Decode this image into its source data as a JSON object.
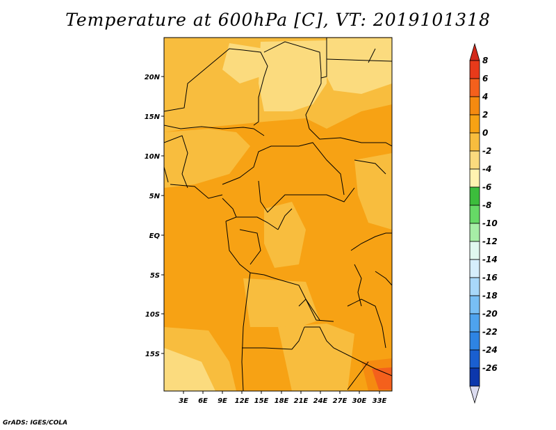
{
  "title": "Temperature at 600hPa [C], VT: 2019101318",
  "credit": "GrADS: IGES/COLA",
  "map": {
    "lat_labels": [
      "20N",
      "15N",
      "10N",
      "5N",
      "EQ",
      "5S",
      "10S",
      "15S"
    ],
    "lon_labels": [
      "3E",
      "6E",
      "9E",
      "12E",
      "15E",
      "18E",
      "21E",
      "24E",
      "27E",
      "30E",
      "33E"
    ]
  },
  "colorbar": {
    "labels": [
      "8",
      "6",
      "4",
      "2",
      "0",
      "-2",
      "-4",
      "-6",
      "-8",
      "-10",
      "-12",
      "-14",
      "-16",
      "-18",
      "-20",
      "-22",
      "-24",
      "-26"
    ],
    "colors": [
      "#e83a1a",
      "#f4601c",
      "#f58a10",
      "#f7a214",
      "#f8bd3e",
      "#fbdb7e",
      "#fff3b0",
      "#3cbd3c",
      "#66d966",
      "#a6eea6",
      "#e0f8f0",
      "#d6eefc",
      "#a8d8fa",
      "#78bff5",
      "#4ea3ee",
      "#2e84e3",
      "#1a5fd0",
      "#0c37ac",
      "#061170"
    ],
    "top_arrow_color": "#d2291a",
    "bottom_arrow_color": "#dcdcf0"
  }
}
